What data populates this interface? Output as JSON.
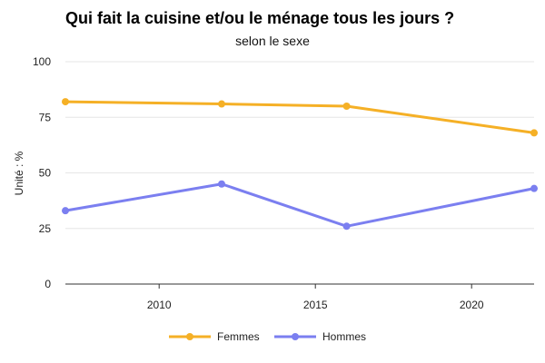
{
  "chart_data": {
    "type": "line",
    "title": "Qui fait la cuisine et/ou le ménage tous les jours ?",
    "subtitle": "selon le sexe",
    "ylabel": "Unité : %",
    "xlabel": "",
    "ylim": [
      0,
      100
    ],
    "xlim": [
      2007,
      2022
    ],
    "yticks": [
      0,
      25,
      50,
      75,
      100
    ],
    "xticks": [
      2010,
      2015,
      2020
    ],
    "grid": true,
    "legend_position": "bottom",
    "series": [
      {
        "name": "Femmes",
        "color": "#f5b026",
        "points": [
          {
            "x": 2007,
            "y": 82
          },
          {
            "x": 2012,
            "y": 81
          },
          {
            "x": 2016,
            "y": 80
          },
          {
            "x": 2022,
            "y": 68
          }
        ]
      },
      {
        "name": "Hommes",
        "color": "#7b7ff0",
        "points": [
          {
            "x": 2007,
            "y": 33
          },
          {
            "x": 2012,
            "y": 45
          },
          {
            "x": 2016,
            "y": 26
          },
          {
            "x": 2022,
            "y": 43
          }
        ]
      }
    ]
  }
}
